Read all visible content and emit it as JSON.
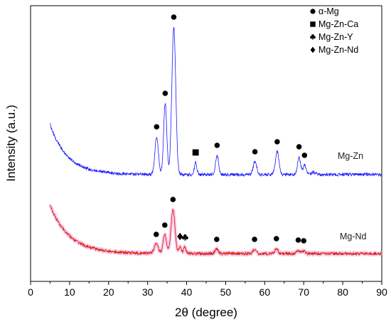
{
  "chart_data": {
    "type": "line",
    "xlabel": "2θ (degree)",
    "ylabel": "Intensity (a.u.)",
    "xlim": [
      0,
      90
    ],
    "xticks": [
      "0",
      "10",
      "20",
      "30",
      "40",
      "50",
      "60",
      "70",
      "80",
      "90"
    ],
    "y_ticks_shown": false,
    "grid": false,
    "legend_position": "top-right",
    "legend": [
      {
        "symbol": "circle",
        "label": "α-Mg"
      },
      {
        "symbol": "square",
        "label": "Mg-Zn-Ca"
      },
      {
        "symbol": "club",
        "label": "Mg-Zn-Y"
      },
      {
        "symbol": "diamond",
        "label": "Mg-Zn-Nd"
      }
    ],
    "series": [
      {
        "name": "Mg-Zn",
        "color": "#1a1aff",
        "range": [
          5,
          90
        ],
        "baseline": 245,
        "low_angle": {
          "amp": 70,
          "decay": 4.5
        },
        "noise": 2.2,
        "peaks": [
          {
            "x": 32.3,
            "h": 53,
            "w": 0.45
          },
          {
            "x": 34.5,
            "h": 100,
            "w": 0.4
          },
          {
            "x": 36.7,
            "h": 207,
            "w": 0.5
          },
          {
            "x": 42.3,
            "h": 17,
            "w": 0.3
          },
          {
            "x": 47.8,
            "h": 27,
            "w": 0.4
          },
          {
            "x": 57.5,
            "h": 18,
            "w": 0.45
          },
          {
            "x": 63.2,
            "h": 32,
            "w": 0.45
          },
          {
            "x": 68.8,
            "h": 25,
            "w": 0.4
          },
          {
            "x": 70.2,
            "h": 13,
            "w": 0.4
          },
          {
            "x": 72.5,
            "h": 3,
            "w": 0.5
          }
        ],
        "markers": [
          {
            "symbol": "circle",
            "x": 32.3
          },
          {
            "symbol": "circle",
            "x": 34.5
          },
          {
            "symbol": "circle",
            "x": 36.7
          },
          {
            "symbol": "square",
            "x": 42.3
          },
          {
            "symbol": "circle",
            "x": 47.8
          },
          {
            "symbol": "circle",
            "x": 57.5
          },
          {
            "symbol": "circle",
            "x": 63.2
          },
          {
            "symbol": "circle",
            "x": 68.8
          },
          {
            "symbol": "circle",
            "x": 70.2
          }
        ]
      },
      {
        "name": "Mg-Nd",
        "color": "#cc2200",
        "fill_color": "#ff99dd",
        "range": [
          5,
          90
        ],
        "baseline": 356,
        "low_angle": {
          "amp": 68,
          "decay": 5
        },
        "noise": 2.0,
        "peaks": [
          {
            "x": 32.2,
            "h": 13,
            "w": 0.5
          },
          {
            "x": 34.4,
            "h": 26,
            "w": 0.45
          },
          {
            "x": 36.5,
            "h": 62,
            "w": 0.5
          },
          {
            "x": 38.3,
            "h": 10,
            "w": 0.3
          },
          {
            "x": 39.5,
            "h": 9,
            "w": 0.3
          },
          {
            "x": 47.7,
            "h": 6,
            "w": 0.4
          },
          {
            "x": 57.4,
            "h": 6,
            "w": 0.4
          },
          {
            "x": 63.0,
            "h": 7,
            "w": 0.4
          },
          {
            "x": 68.6,
            "h": 5,
            "w": 0.4
          },
          {
            "x": 70.0,
            "h": 4,
            "w": 0.4
          }
        ],
        "markers": [
          {
            "symbol": "circle",
            "x": 32.2
          },
          {
            "symbol": "circle",
            "x": 34.4
          },
          {
            "symbol": "circle",
            "x": 36.5
          },
          {
            "symbol": "diamond",
            "x": 38.3
          },
          {
            "symbol": "club",
            "x": 39.6
          },
          {
            "symbol": "circle",
            "x": 47.7
          },
          {
            "symbol": "circle",
            "x": 57.4
          },
          {
            "symbol": "circle",
            "x": 63.0
          },
          {
            "symbol": "circle",
            "x": 68.6
          },
          {
            "symbol": "circle",
            "x": 70.0
          }
        ]
      }
    ]
  }
}
